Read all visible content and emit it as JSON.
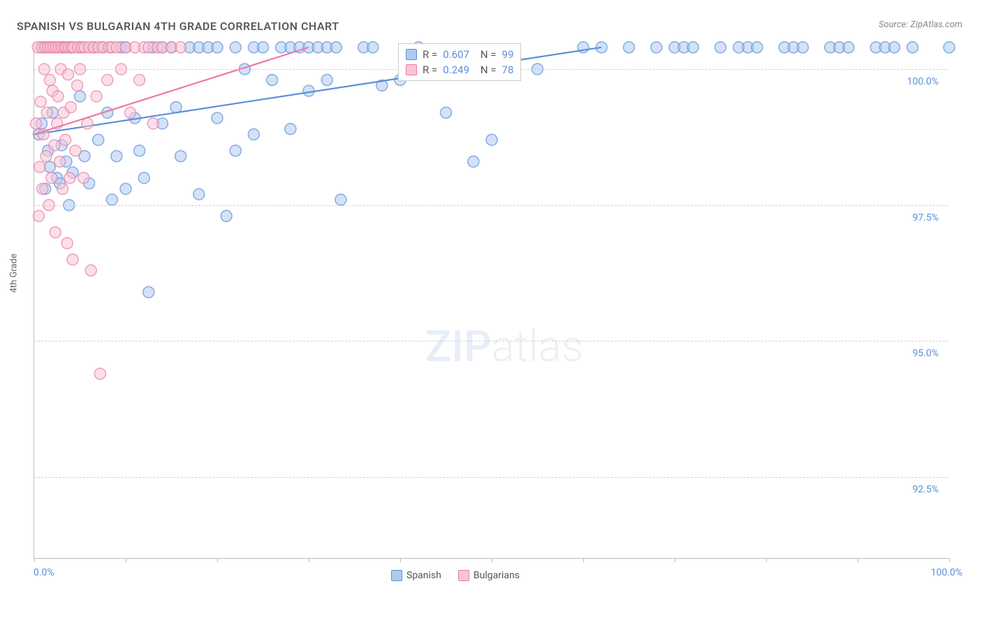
{
  "title": "SPANISH VS BULGARIAN 4TH GRADE CORRELATION CHART",
  "source": "Source: ZipAtlas.com",
  "yaxis_title": "4th Grade",
  "watermark_a": "ZIP",
  "watermark_b": "atlas",
  "chart": {
    "type": "scatter",
    "xlim": [
      0,
      100
    ],
    "ylim": [
      91.0,
      100.5
    ],
    "ytick_values": [
      92.5,
      95.0,
      97.5,
      100.0
    ],
    "ytick_labels": [
      "92.5%",
      "95.0%",
      "97.5%",
      "100.0%"
    ],
    "xtick_values": [
      0,
      10,
      20,
      30,
      40,
      50,
      60,
      70,
      80,
      90,
      100
    ],
    "xlabel_min": "0.0%",
    "xlabel_max": "100.0%",
    "grid_color": "#d0d0d0",
    "axis_color": "#bdbdbd",
    "background": "#ffffff",
    "marker_radius": 8,
    "marker_fill_opacity": 0.25,
    "marker_stroke_width": 1.5,
    "series": [
      {
        "name": "Spanish",
        "color": "#5b8fd9",
        "fill": "#aecbef",
        "trend": {
          "x1": 0,
          "y1": 98.8,
          "x2": 62,
          "y2": 100.4
        },
        "r_value": "0.607",
        "n_value": "99",
        "points": [
          [
            0.5,
            98.8
          ],
          [
            0.8,
            99.0
          ],
          [
            1.0,
            100.4
          ],
          [
            1.2,
            97.8
          ],
          [
            1.5,
            98.5
          ],
          [
            1.7,
            98.2
          ],
          [
            2.0,
            99.2
          ],
          [
            2.0,
            100.4
          ],
          [
            2.5,
            98.0
          ],
          [
            2.8,
            97.9
          ],
          [
            3.0,
            98.6
          ],
          [
            3.2,
            100.4
          ],
          [
            3.5,
            98.3
          ],
          [
            3.8,
            97.5
          ],
          [
            4.0,
            100.4
          ],
          [
            4.2,
            98.1
          ],
          [
            5.0,
            99.5
          ],
          [
            5.0,
            100.4
          ],
          [
            5.5,
            98.4
          ],
          [
            6.0,
            97.9
          ],
          [
            6.5,
            100.4
          ],
          [
            7.0,
            98.7
          ],
          [
            7.5,
            100.4
          ],
          [
            8.0,
            99.2
          ],
          [
            8.5,
            97.6
          ],
          [
            9.0,
            98.4
          ],
          [
            9.5,
            100.4
          ],
          [
            10.0,
            97.8
          ],
          [
            10.0,
            100.4
          ],
          [
            11.0,
            99.1
          ],
          [
            11.5,
            98.5
          ],
          [
            12.0,
            98.0
          ],
          [
            12.5,
            95.9
          ],
          [
            13.0,
            100.4
          ],
          [
            14.0,
            99.0
          ],
          [
            14.0,
            100.4
          ],
          [
            15.0,
            100.4
          ],
          [
            15.5,
            99.3
          ],
          [
            16.0,
            98.4
          ],
          [
            17.0,
            100.4
          ],
          [
            18.0,
            97.7
          ],
          [
            18.0,
            100.4
          ],
          [
            19.0,
            100.4
          ],
          [
            20.0,
            99.1
          ],
          [
            20.0,
            100.4
          ],
          [
            21.0,
            97.3
          ],
          [
            22.0,
            98.5
          ],
          [
            22.0,
            100.4
          ],
          [
            23.0,
            100.0
          ],
          [
            24.0,
            98.8
          ],
          [
            24.0,
            100.4
          ],
          [
            25.0,
            100.4
          ],
          [
            26.0,
            99.8
          ],
          [
            27.0,
            100.4
          ],
          [
            28.0,
            98.9
          ],
          [
            28.0,
            100.4
          ],
          [
            29.0,
            100.4
          ],
          [
            30.0,
            99.6
          ],
          [
            30.0,
            100.4
          ],
          [
            31.0,
            100.4
          ],
          [
            32.0,
            99.8
          ],
          [
            32.0,
            100.4
          ],
          [
            33.0,
            100.4
          ],
          [
            33.5,
            97.6
          ],
          [
            36.0,
            100.4
          ],
          [
            37.0,
            100.4
          ],
          [
            38.0,
            99.7
          ],
          [
            40.0,
            99.8
          ],
          [
            42.0,
            100.4
          ],
          [
            43.0,
            99.9
          ],
          [
            45.0,
            99.2
          ],
          [
            48.0,
            98.3
          ],
          [
            50.0,
            98.7
          ],
          [
            55.0,
            100.0
          ],
          [
            60.0,
            100.4
          ],
          [
            62.0,
            100.4
          ],
          [
            65.0,
            100.4
          ],
          [
            68.0,
            100.4
          ],
          [
            70.0,
            100.4
          ],
          [
            71.0,
            100.4
          ],
          [
            72.0,
            100.4
          ],
          [
            75.0,
            100.4
          ],
          [
            77.0,
            100.4
          ],
          [
            78.0,
            100.4
          ],
          [
            79.0,
            100.4
          ],
          [
            82.0,
            100.4
          ],
          [
            83.0,
            100.4
          ],
          [
            84.0,
            100.4
          ],
          [
            87.0,
            100.4
          ],
          [
            88.0,
            100.4
          ],
          [
            89.0,
            100.4
          ],
          [
            92.0,
            100.4
          ],
          [
            93.0,
            100.4
          ],
          [
            94.0,
            100.4
          ],
          [
            96.0,
            100.4
          ],
          [
            100.0,
            100.4
          ]
        ]
      },
      {
        "name": "Bulgarians",
        "color": "#e97ba5",
        "fill": "#f7c4d6",
        "trend": {
          "x1": 0,
          "y1": 98.8,
          "x2": 30,
          "y2": 100.4
        },
        "r_value": "0.249",
        "n_value": "78",
        "points": [
          [
            0.2,
            99.0
          ],
          [
            0.4,
            100.4
          ],
          [
            0.5,
            97.3
          ],
          [
            0.6,
            98.2
          ],
          [
            0.7,
            99.4
          ],
          [
            0.8,
            100.4
          ],
          [
            0.9,
            97.8
          ],
          [
            1.0,
            98.8
          ],
          [
            1.1,
            100.0
          ],
          [
            1.2,
            100.4
          ],
          [
            1.3,
            98.4
          ],
          [
            1.4,
            99.2
          ],
          [
            1.5,
            100.4
          ],
          [
            1.6,
            97.5
          ],
          [
            1.7,
            99.8
          ],
          [
            1.8,
            100.4
          ],
          [
            1.9,
            98.0
          ],
          [
            2.0,
            99.6
          ],
          [
            2.1,
            100.4
          ],
          [
            2.2,
            98.6
          ],
          [
            2.3,
            97.0
          ],
          [
            2.4,
            100.4
          ],
          [
            2.5,
            99.0
          ],
          [
            2.6,
            99.5
          ],
          [
            2.7,
            100.4
          ],
          [
            2.8,
            98.3
          ],
          [
            2.9,
            100.0
          ],
          [
            3.0,
            100.4
          ],
          [
            3.1,
            97.8
          ],
          [
            3.2,
            99.2
          ],
          [
            3.3,
            100.4
          ],
          [
            3.4,
            98.7
          ],
          [
            3.5,
            100.4
          ],
          [
            3.6,
            96.8
          ],
          [
            3.7,
            99.9
          ],
          [
            3.8,
            100.4
          ],
          [
            3.9,
            98.0
          ],
          [
            4.0,
            99.3
          ],
          [
            4.1,
            100.4
          ],
          [
            4.2,
            96.5
          ],
          [
            4.3,
            100.4
          ],
          [
            4.5,
            98.5
          ],
          [
            4.7,
            99.7
          ],
          [
            4.8,
            100.4
          ],
          [
            5.0,
            100.0
          ],
          [
            5.2,
            100.4
          ],
          [
            5.4,
            98.0
          ],
          [
            5.5,
            100.4
          ],
          [
            5.8,
            99.0
          ],
          [
            6.0,
            100.4
          ],
          [
            6.2,
            96.3
          ],
          [
            6.5,
            100.4
          ],
          [
            6.8,
            99.5
          ],
          [
            7.0,
            100.4
          ],
          [
            7.2,
            94.4
          ],
          [
            7.5,
            100.4
          ],
          [
            8.0,
            99.8
          ],
          [
            8.2,
            100.4
          ],
          [
            8.5,
            100.4
          ],
          [
            9.0,
            100.4
          ],
          [
            9.5,
            100.0
          ],
          [
            10.0,
            100.4
          ],
          [
            10.5,
            99.2
          ],
          [
            11.0,
            100.4
          ],
          [
            11.5,
            99.8
          ],
          [
            12.0,
            100.4
          ],
          [
            12.5,
            100.4
          ],
          [
            13.0,
            99.0
          ],
          [
            13.5,
            100.4
          ],
          [
            14.0,
            100.4
          ],
          [
            15.0,
            100.4
          ],
          [
            16.0,
            100.4
          ]
        ]
      }
    ]
  },
  "legend_stats": {
    "r_label": "R =",
    "n_label": "N ="
  },
  "legend_bottom": [
    {
      "label": "Spanish",
      "color": "#5b8fd9",
      "fill": "#aecbef"
    },
    {
      "label": "Bulgarians",
      "color": "#e97ba5",
      "fill": "#f7c4d6"
    }
  ]
}
